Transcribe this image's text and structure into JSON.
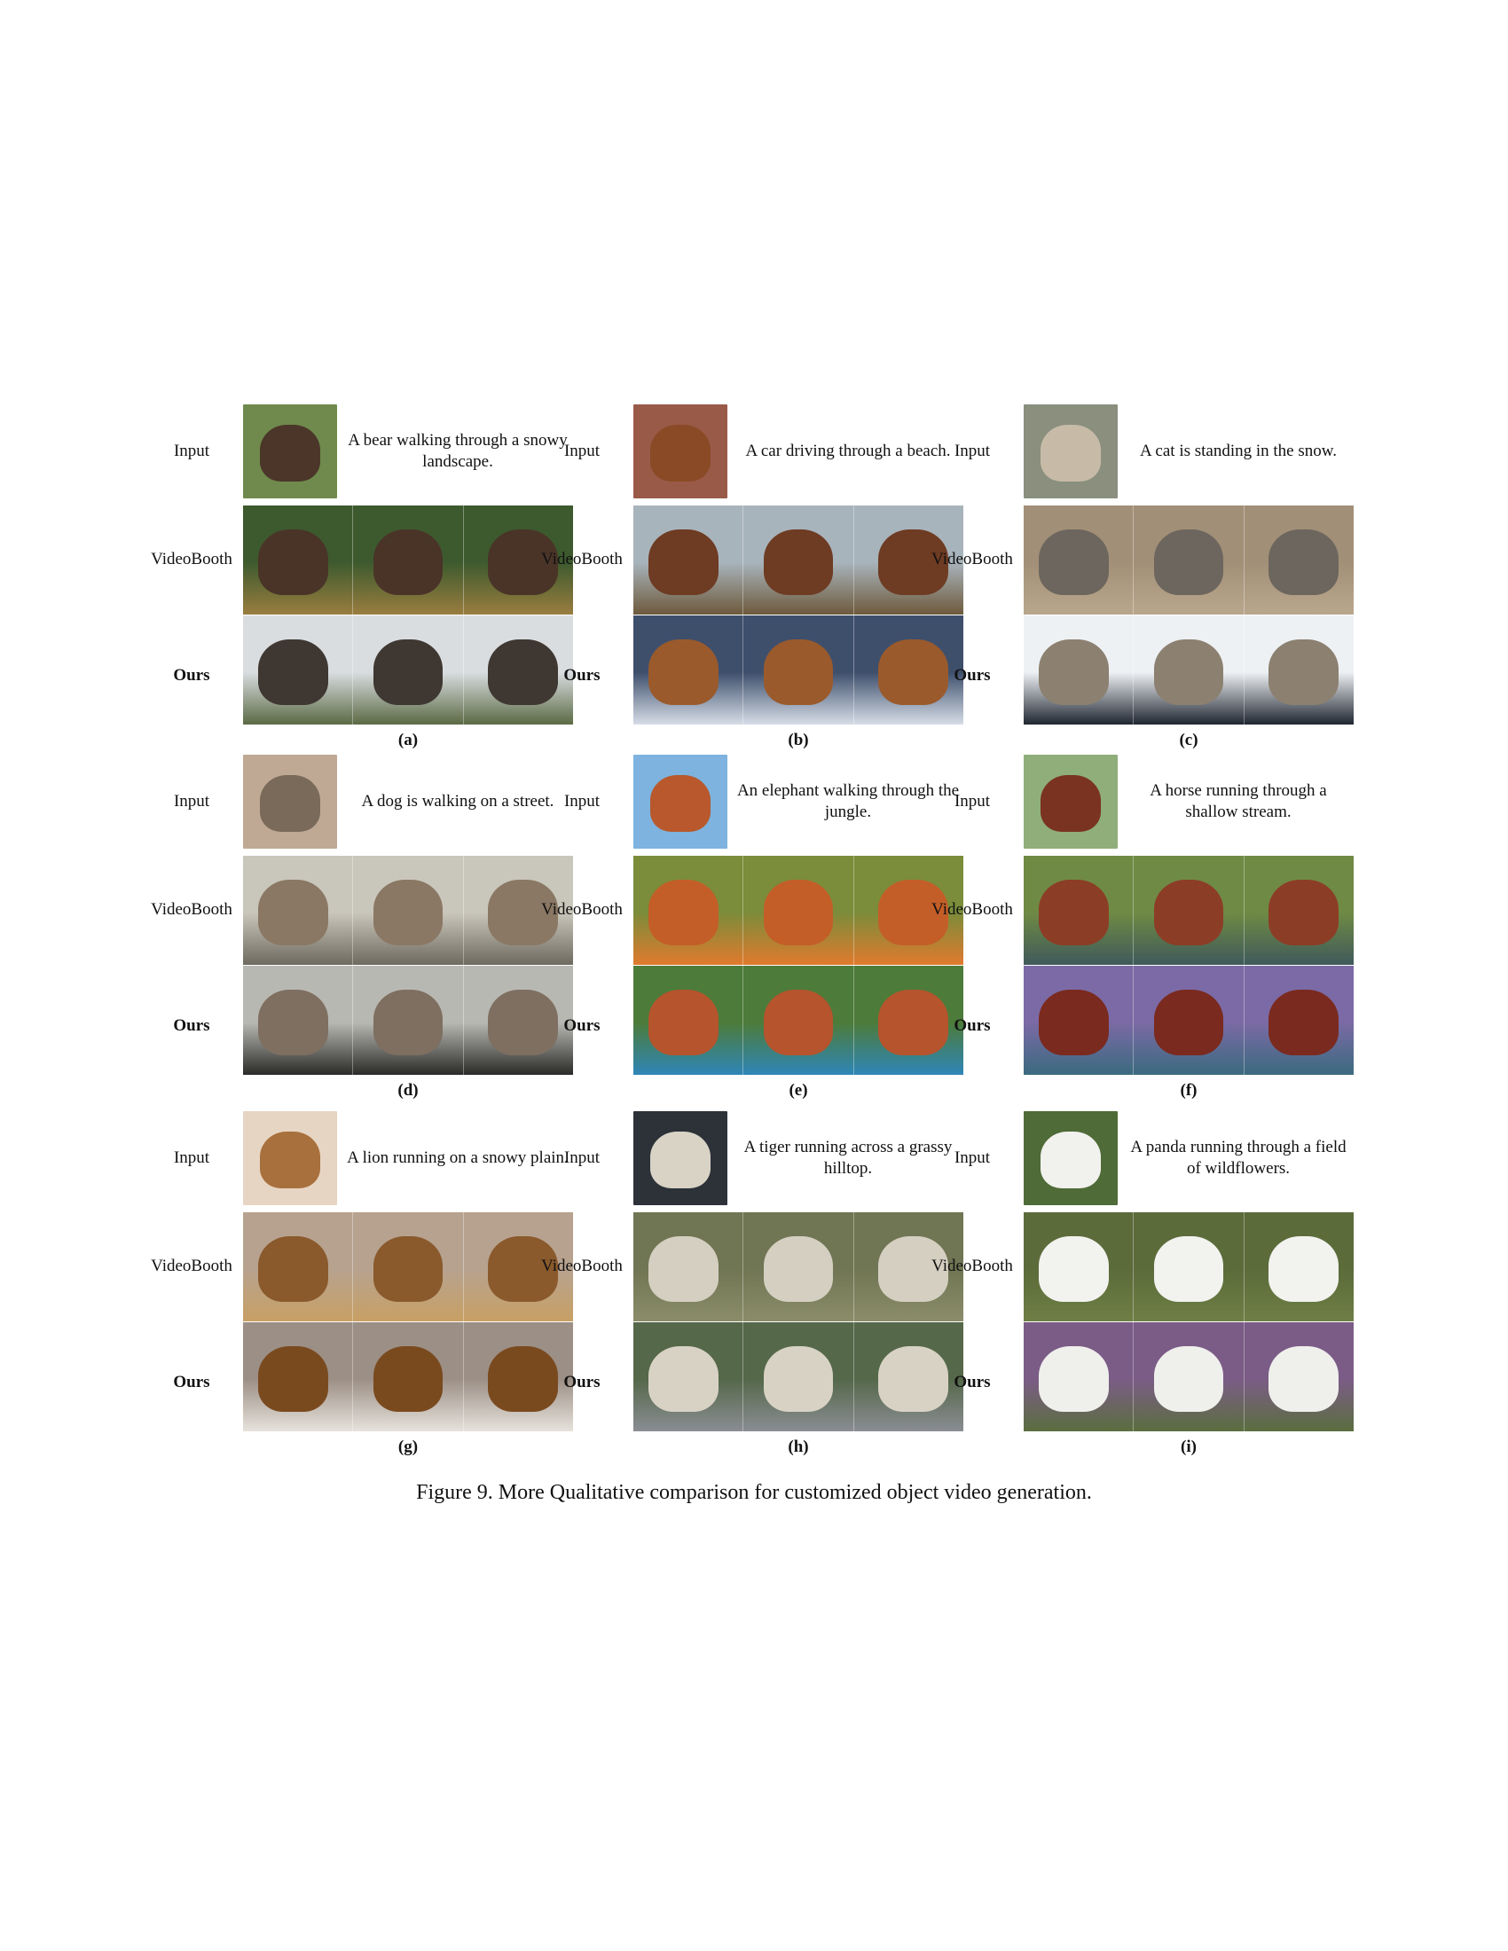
{
  "row_labels": {
    "input": "Input",
    "videobooth": "VideoBooth",
    "ours": "Ours"
  },
  "caption": "Figure 9. More Qualitative comparison for customized object video generation.",
  "panels": [
    {
      "id": "a",
      "label": "(a)",
      "prompt": "A bear walking through a snowy landscape.",
      "colors": {
        "input_bg": "#6f8a4c",
        "input_subject": "#4b3629",
        "vb_bg": "#3d5a2e",
        "vb_ground": "#9a7d3f",
        "vb_subject": "#4a3428",
        "ours_bg": "#d9dde0",
        "ours_ground": "#5b6a44",
        "ours_subject": "#3f3732"
      }
    },
    {
      "id": "b",
      "label": "(b)",
      "prompt": "A car driving through a beach.",
      "colors": {
        "input_bg": "#9a5a48",
        "input_subject": "#8a4a26",
        "vb_bg": "#a8b4bc",
        "vb_ground": "#6e5a3c",
        "vb_subject": "#6e3b23",
        "ours_bg": "#3e4f6c",
        "ours_ground": "#d6dde7",
        "ours_subject": "#9a5a2c"
      }
    },
    {
      "id": "c",
      "label": "(c)",
      "prompt": "A cat is standing in the snow.",
      "colors": {
        "input_bg": "#8a8f7e",
        "input_subject": "#c7bba8",
        "vb_bg": "#a28f77",
        "vb_ground": "#b9a78d",
        "vb_subject": "#6c665e",
        "ours_bg": "#eef1f4",
        "ours_ground": "#1f2631",
        "ours_subject": "#8c8070"
      }
    },
    {
      "id": "d",
      "label": "(d)",
      "prompt": "A dog is walking on a street.",
      "colors": {
        "input_bg": "#bfa994",
        "input_subject": "#7a6a5a",
        "vb_bg": "#c9c6bb",
        "vb_ground": "#6f6a5f",
        "vb_subject": "#8a7864",
        "ours_bg": "#b8b8b3",
        "ours_ground": "#2a2a28",
        "ours_subject": "#7e6f60"
      }
    },
    {
      "id": "e",
      "label": "(e)",
      "prompt": "An elephant walking through the jungle.",
      "colors": {
        "input_bg": "#7db3de",
        "input_subject": "#b8582c",
        "vb_bg": "#7b8c3a",
        "vb_ground": "#e07a2e",
        "vb_subject": "#c45e28",
        "ours_bg": "#4d7b3a",
        "ours_ground": "#2e86b8",
        "ours_subject": "#b5542d"
      }
    },
    {
      "id": "f",
      "label": "(f)",
      "prompt": "A horse running through a shallow stream.",
      "colors": {
        "input_bg": "#8fae7a",
        "input_subject": "#7a3320",
        "vb_bg": "#6f8a44",
        "vb_ground": "#3f5a5a",
        "vb_subject": "#8c3d26",
        "ours_bg": "#7b6aa5",
        "ours_ground": "#3a6a7f",
        "ours_subject": "#7a2a1e"
      }
    },
    {
      "id": "g",
      "label": "(g)",
      "prompt": "A lion running on a snowy plain.",
      "colors": {
        "input_bg": "#e6d5c3",
        "input_subject": "#a8703c",
        "vb_bg": "#b7a28f",
        "vb_ground": "#c8a064",
        "vb_subject": "#8a5a2c",
        "ours_bg": "#9c8f85",
        "ours_ground": "#e6e2dc",
        "ours_subject": "#7a4a1f"
      }
    },
    {
      "id": "h",
      "label": "(h)",
      "prompt": "A tiger running across a grassy hilltop.",
      "colors": {
        "input_bg": "#2c3238",
        "input_subject": "#d9d3c6",
        "vb_bg": "#707553",
        "vb_ground": "#8b8d6a",
        "vb_subject": "#d4cfc1",
        "ours_bg": "#55684a",
        "ours_ground": "#8a8d93",
        "ours_subject": "#d8d2c4"
      }
    },
    {
      "id": "i",
      "label": "(i)",
      "prompt": "A panda running through a field of wildflowers.",
      "colors": {
        "input_bg": "#4f6b37",
        "input_subject": "#f1f1ee",
        "vb_bg": "#5b6b3a",
        "vb_ground": "#6e7f45",
        "vb_subject": "#f2f2ef",
        "ours_bg": "#7b5c86",
        "ours_ground": "#5a6e3f",
        "ours_subject": "#efefec"
      }
    }
  ]
}
